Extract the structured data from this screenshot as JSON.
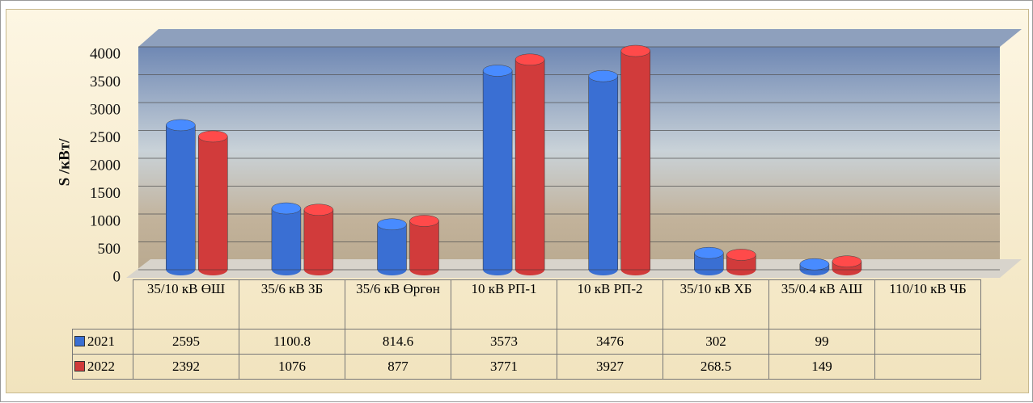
{
  "chart_data": {
    "type": "bar",
    "y_label": "S /кВт/",
    "categories": [
      "35/10 кВ ӨШ",
      "35/6 кВ ЗБ",
      "35/6 кВ Өргөн",
      "10 кВ РП-1",
      "10 кВ РП-2",
      "35/10 кВ ХБ",
      "35/0.4 кВ АШ",
      "110/10 кВ ЧБ"
    ],
    "series": [
      {
        "name": "2021",
        "color": "#3a6fd3",
        "values": [
          2595,
          1100.8,
          814.6,
          3573,
          3476,
          302,
          99,
          null
        ]
      },
      {
        "name": "2022",
        "color": "#d13b3b",
        "values": [
          2392,
          1076,
          877,
          3771,
          3927,
          268.5,
          149,
          null
        ]
      }
    ],
    "ylim": [
      0,
      4000
    ],
    "yticks": [
      0,
      500,
      1000,
      1500,
      2000,
      2500,
      3000,
      3500,
      4000
    ],
    "grid": true
  }
}
